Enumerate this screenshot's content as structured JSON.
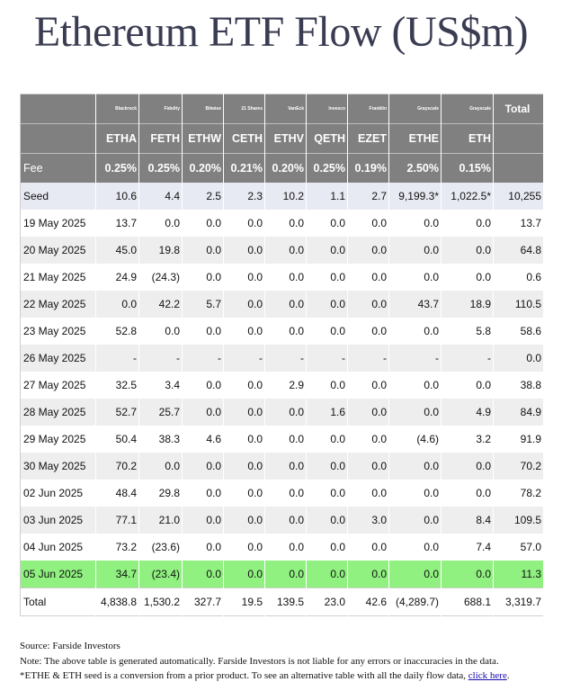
{
  "title": "Ethereum ETF Flow (US$m)",
  "issuers": [
    "Blackrock",
    "Fidelity",
    "Bitwise",
    "21 Shares",
    "VanEck",
    "Invesco",
    "Franklin",
    "Grayscale",
    "Grayscale"
  ],
  "total_header": "Total",
  "tickers": [
    "ETHA",
    "FETH",
    "ETHW",
    "CETH",
    "ETHV",
    "QETH",
    "EZET",
    "ETHE",
    "ETH"
  ],
  "fee_label": "Fee",
  "fees": [
    "0.25%",
    "0.25%",
    "0.20%",
    "0.21%",
    "0.20%",
    "0.25%",
    "0.19%",
    "2.50%",
    "0.15%"
  ],
  "rows": [
    {
      "label": "Seed",
      "cells": [
        "10.6",
        "4.4",
        "2.5",
        "2.3",
        "10.2",
        "1.1",
        "2.7",
        "9,199.3*",
        "1,022.5*"
      ],
      "total": "10,255",
      "neg": []
    },
    {
      "label": "19 May 2025",
      "cells": [
        "13.7",
        "0.0",
        "0.0",
        "0.0",
        "0.0",
        "0.0",
        "0.0",
        "0.0",
        "0.0"
      ],
      "total": "13.7",
      "neg": []
    },
    {
      "label": "20 May 2025",
      "cells": [
        "45.0",
        "19.8",
        "0.0",
        "0.0",
        "0.0",
        "0.0",
        "0.0",
        "0.0",
        "0.0"
      ],
      "total": "64.8",
      "neg": []
    },
    {
      "label": "21 May 2025",
      "cells": [
        "24.9",
        "(24.3)",
        "0.0",
        "0.0",
        "0.0",
        "0.0",
        "0.0",
        "0.0",
        "0.0"
      ],
      "total": "0.6",
      "neg": [
        1
      ]
    },
    {
      "label": "22 May 2025",
      "cells": [
        "0.0",
        "42.2",
        "5.7",
        "0.0",
        "0.0",
        "0.0",
        "0.0",
        "43.7",
        "18.9"
      ],
      "total": "110.5",
      "neg": []
    },
    {
      "label": "23 May 2025",
      "cells": [
        "52.8",
        "0.0",
        "0.0",
        "0.0",
        "0.0",
        "0.0",
        "0.0",
        "0.0",
        "5.8"
      ],
      "total": "58.6",
      "neg": []
    },
    {
      "label": "26 May 2025",
      "cells": [
        "-",
        "-",
        "-",
        "-",
        "-",
        "-",
        "-",
        "-",
        "-"
      ],
      "total": "0.0",
      "neg": []
    },
    {
      "label": "27 May 2025",
      "cells": [
        "32.5",
        "3.4",
        "0.0",
        "0.0",
        "2.9",
        "0.0",
        "0.0",
        "0.0",
        "0.0"
      ],
      "total": "38.8",
      "neg": []
    },
    {
      "label": "28 May 2025",
      "cells": [
        "52.7",
        "25.7",
        "0.0",
        "0.0",
        "0.0",
        "1.6",
        "0.0",
        "0.0",
        "4.9"
      ],
      "total": "84.9",
      "neg": []
    },
    {
      "label": "29 May 2025",
      "cells": [
        "50.4",
        "38.3",
        "4.6",
        "0.0",
        "0.0",
        "0.0",
        "0.0",
        "(4.6)",
        "3.2"
      ],
      "total": "91.9",
      "neg": [
        7
      ]
    },
    {
      "label": "30 May 2025",
      "cells": [
        "70.2",
        "0.0",
        "0.0",
        "0.0",
        "0.0",
        "0.0",
        "0.0",
        "0.0",
        "0.0"
      ],
      "total": "70.2",
      "neg": []
    },
    {
      "label": "02 Jun 2025",
      "cells": [
        "48.4",
        "29.8",
        "0.0",
        "0.0",
        "0.0",
        "0.0",
        "0.0",
        "0.0",
        "0.0"
      ],
      "total": "78.2",
      "neg": []
    },
    {
      "label": "03 Jun 2025",
      "cells": [
        "77.1",
        "21.0",
        "0.0",
        "0.0",
        "0.0",
        "0.0",
        "3.0",
        "0.0",
        "8.4"
      ],
      "total": "109.5",
      "neg": []
    },
    {
      "label": "04 Jun 2025",
      "cells": [
        "73.2",
        "(23.6)",
        "0.0",
        "0.0",
        "0.0",
        "0.0",
        "0.0",
        "0.0",
        "7.4"
      ],
      "total": "57.0",
      "neg": [
        1
      ]
    },
    {
      "label": "05 Jun 2025",
      "cells": [
        "34.7",
        "(23.4)",
        "0.0",
        "0.0",
        "0.0",
        "0.0",
        "0.0",
        "0.0",
        "0.0"
      ],
      "total": "11.3",
      "neg": [
        1
      ]
    }
  ],
  "total_row": {
    "label": "Total",
    "cells": [
      "4,838.8",
      "1,530.2",
      "327.7",
      "19.5",
      "139.5",
      "23.0",
      "42.6",
      "(4,289.7)",
      "688.1"
    ],
    "total": "3,319.7",
    "neg": [
      7
    ]
  },
  "colors": {
    "header_bg": "#808080",
    "seed_bg": "#e8eaf3",
    "stripe_bg": "#eeeeee",
    "latest_bg": "#90f080",
    "negative": "#d20000"
  },
  "footer": {
    "source": "Source: Farside Investors",
    "note": "Note: The above table is generated automatically. Farside Investors is not liable for any errors or inaccuracies in the data.",
    "seed_note": "*ETHE & ETH seed is a conversion from a prior product.  To see an alternative table with all the daily flow data,",
    "link_text": "click here",
    "link_suffix": "."
  }
}
